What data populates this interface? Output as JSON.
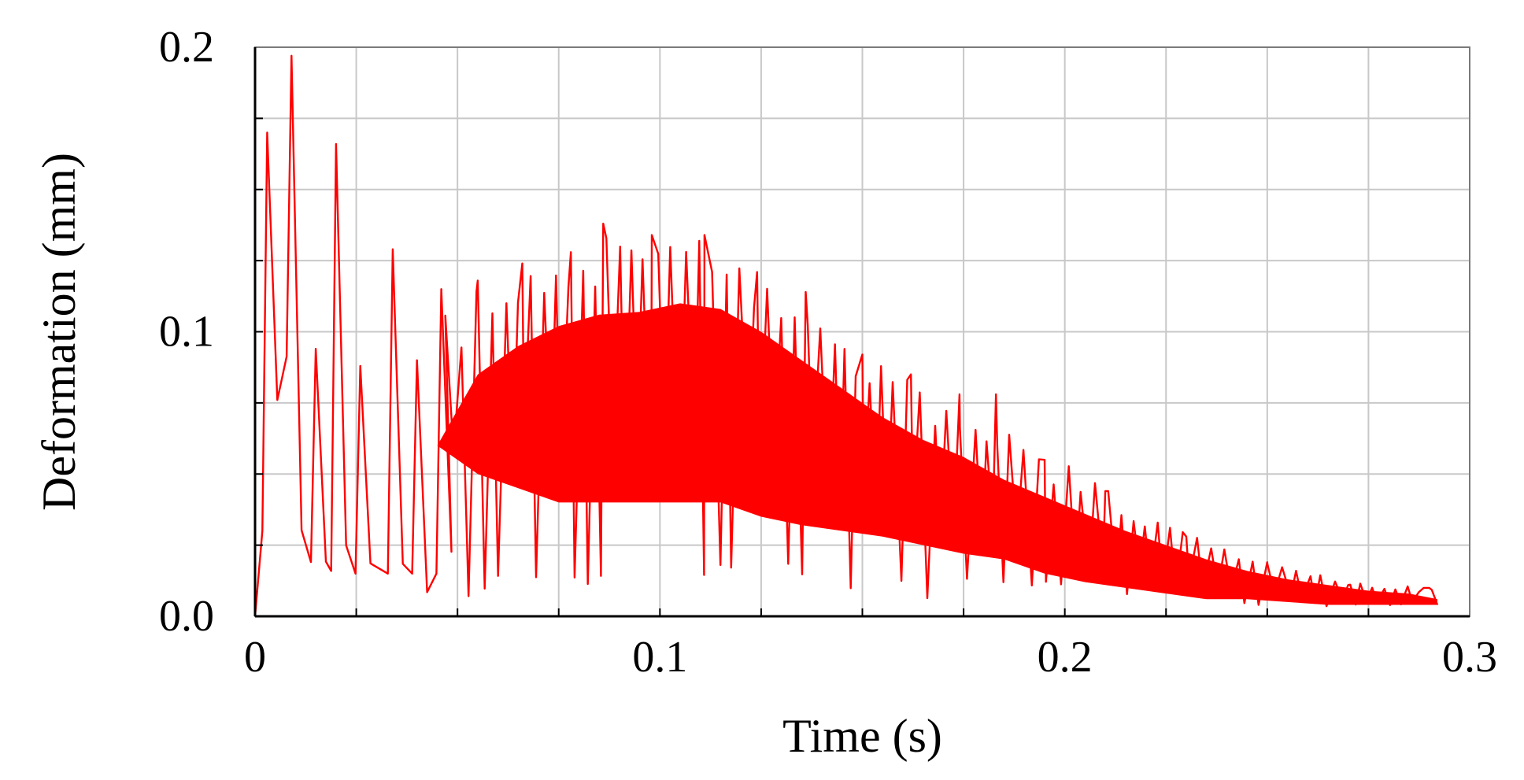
{
  "chart_data": {
    "type": "line",
    "title": "",
    "xlabel": "Time (s)",
    "ylabel": "Deformation (mm)",
    "xlim": [
      0,
      0.3
    ],
    "ylim": [
      0,
      0.2
    ],
    "grid": true,
    "legend": "none",
    "x_ticks": [
      {
        "value": 0,
        "label": "0"
      },
      {
        "value": 0.1,
        "label": "0.1"
      },
      {
        "value": 0.2,
        "label": "0.2"
      },
      {
        "value": 0.3,
        "label": "0.3"
      }
    ],
    "y_ticks": [
      {
        "value": 0.0,
        "label": "0.0"
      },
      {
        "value": 0.1,
        "label": "0.1"
      },
      {
        "value": 0.2,
        "label": "0.2"
      }
    ],
    "x_minor_step": 0.025,
    "y_minor_step": 0.025,
    "series": [
      {
        "color": "#ff0000",
        "x_end": 0.292,
        "peaks": [
          {
            "x": 0.003,
            "y": 0.17
          },
          {
            "x": 0.009,
            "y": 0.197
          },
          {
            "x": 0.015,
            "y": 0.094
          },
          {
            "x": 0.02,
            "y": 0.166
          },
          {
            "x": 0.026,
            "y": 0.088
          },
          {
            "x": 0.034,
            "y": 0.129
          },
          {
            "x": 0.04,
            "y": 0.09
          },
          {
            "x": 0.046,
            "y": 0.115
          },
          {
            "x": 0.055,
            "y": 0.118
          },
          {
            "x": 0.066,
            "y": 0.124
          },
          {
            "x": 0.078,
            "y": 0.128
          },
          {
            "x": 0.086,
            "y": 0.138
          },
          {
            "x": 0.098,
            "y": 0.134
          },
          {
            "x": 0.111,
            "y": 0.134
          },
          {
            "x": 0.124,
            "y": 0.121
          },
          {
            "x": 0.136,
            "y": 0.114
          },
          {
            "x": 0.15,
            "y": 0.092
          },
          {
            "x": 0.162,
            "y": 0.085
          },
          {
            "x": 0.174,
            "y": 0.078
          },
          {
            "x": 0.183,
            "y": 0.078
          },
          {
            "x": 0.195,
            "y": 0.055
          },
          {
            "x": 0.21,
            "y": 0.044
          },
          {
            "x": 0.23,
            "y": 0.028
          },
          {
            "x": 0.25,
            "y": 0.019
          },
          {
            "x": 0.27,
            "y": 0.011
          },
          {
            "x": 0.29,
            "y": 0.01
          }
        ],
        "upper_envelope": [
          [
            0.0,
            0.0
          ],
          [
            0.003,
            0.17
          ],
          [
            0.009,
            0.197
          ],
          [
            0.015,
            0.094
          ],
          [
            0.02,
            0.166
          ],
          [
            0.026,
            0.088
          ],
          [
            0.034,
            0.129
          ],
          [
            0.04,
            0.092
          ],
          [
            0.046,
            0.115
          ],
          [
            0.055,
            0.117
          ],
          [
            0.066,
            0.123
          ],
          [
            0.078,
            0.128
          ],
          [
            0.086,
            0.137
          ],
          [
            0.098,
            0.133
          ],
          [
            0.111,
            0.133
          ],
          [
            0.124,
            0.121
          ],
          [
            0.136,
            0.114
          ],
          [
            0.15,
            0.092
          ],
          [
            0.162,
            0.085
          ],
          [
            0.174,
            0.072
          ],
          [
            0.19,
            0.062
          ],
          [
            0.21,
            0.046
          ],
          [
            0.23,
            0.03
          ],
          [
            0.25,
            0.019
          ],
          [
            0.27,
            0.012
          ],
          [
            0.292,
            0.01
          ]
        ],
        "lower_envelope": [
          [
            0.0,
            0.0
          ],
          [
            0.003,
            0.04
          ],
          [
            0.009,
            0.095
          ],
          [
            0.012,
            0.01
          ],
          [
            0.02,
            0.005
          ],
          [
            0.03,
            0.005
          ],
          [
            0.04,
            0.005
          ],
          [
            0.05,
            0.005
          ],
          [
            0.06,
            0.005
          ],
          [
            0.07,
            0.005
          ],
          [
            0.08,
            0.01
          ],
          [
            0.09,
            0.01
          ],
          [
            0.1,
            0.012
          ],
          [
            0.11,
            0.01
          ],
          [
            0.12,
            0.01
          ],
          [
            0.13,
            0.012
          ],
          [
            0.14,
            0.01
          ],
          [
            0.15,
            0.008
          ],
          [
            0.16,
            0.005
          ],
          [
            0.17,
            0.005
          ],
          [
            0.18,
            0.003
          ],
          [
            0.19,
            0.003
          ],
          [
            0.2,
            0.003
          ],
          [
            0.22,
            0.003
          ],
          [
            0.24,
            0.003
          ],
          [
            0.26,
            0.003
          ],
          [
            0.28,
            0.003
          ],
          [
            0.292,
            0.003
          ]
        ],
        "dense_band": [
          [
            0.0,
            0.0,
            0.0
          ],
          [
            0.01,
            0.0,
            0.0
          ],
          [
            0.02,
            0.0,
            0.0
          ],
          [
            0.045,
            0.06,
            0.06
          ],
          [
            0.055,
            0.05,
            0.085
          ],
          [
            0.065,
            0.045,
            0.095
          ],
          [
            0.075,
            0.04,
            0.102
          ],
          [
            0.085,
            0.04,
            0.106
          ],
          [
            0.095,
            0.04,
            0.107
          ],
          [
            0.105,
            0.04,
            0.11
          ],
          [
            0.115,
            0.04,
            0.108
          ],
          [
            0.125,
            0.035,
            0.1
          ],
          [
            0.135,
            0.032,
            0.09
          ],
          [
            0.145,
            0.03,
            0.08
          ],
          [
            0.155,
            0.028,
            0.07
          ],
          [
            0.165,
            0.025,
            0.062
          ],
          [
            0.175,
            0.022,
            0.056
          ],
          [
            0.185,
            0.02,
            0.048
          ],
          [
            0.195,
            0.015,
            0.042
          ],
          [
            0.205,
            0.012,
            0.036
          ],
          [
            0.215,
            0.01,
            0.03
          ],
          [
            0.225,
            0.008,
            0.025
          ],
          [
            0.235,
            0.006,
            0.02
          ],
          [
            0.245,
            0.006,
            0.016
          ],
          [
            0.255,
            0.005,
            0.013
          ],
          [
            0.265,
            0.004,
            0.011
          ],
          [
            0.275,
            0.004,
            0.009
          ],
          [
            0.285,
            0.004,
            0.008
          ],
          [
            0.292,
            0.004,
            0.006
          ]
        ]
      }
    ]
  }
}
